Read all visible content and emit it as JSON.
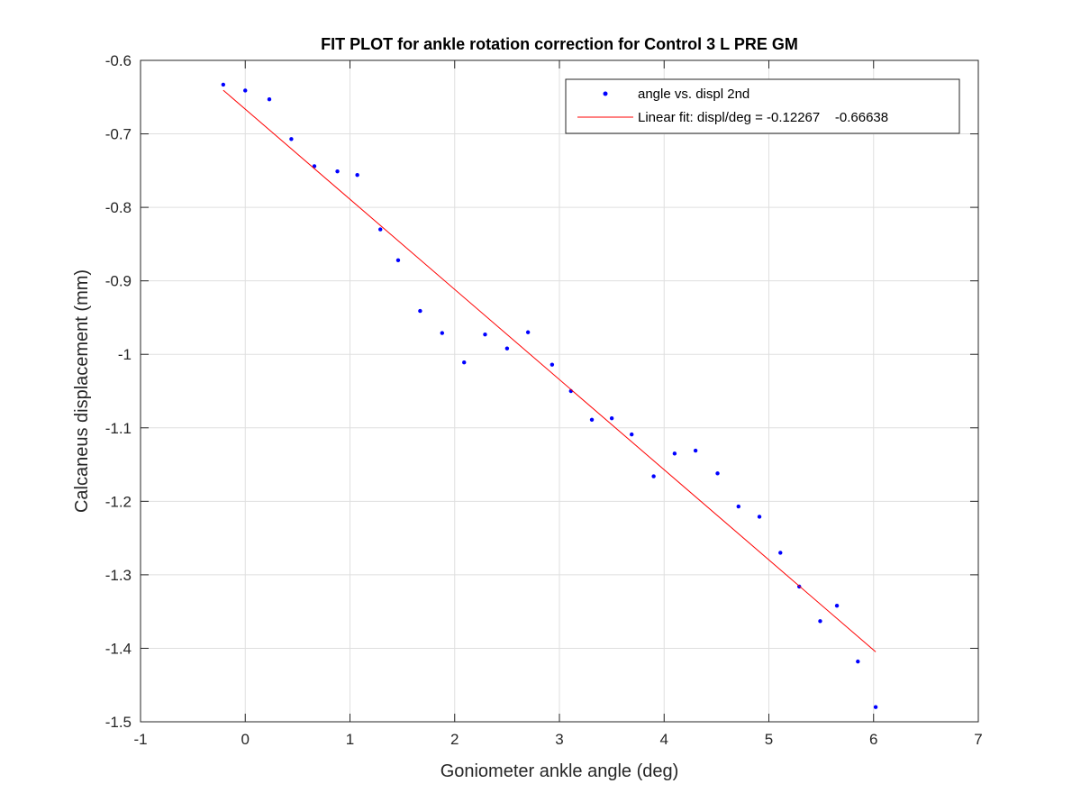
{
  "chart_data": {
    "type": "scatter",
    "title": "FIT PLOT for ankle rotation correction for Control 3 L PRE GM",
    "xlabel": "Goniometer ankle angle (deg)",
    "ylabel": "Calcaneus displacement (mm)",
    "xlim": [
      -1,
      7
    ],
    "ylim": [
      -1.5,
      -0.6
    ],
    "xticks": [
      -1,
      0,
      1,
      2,
      3,
      4,
      5,
      6,
      7
    ],
    "xtick_labels": [
      "-1",
      "0",
      "1",
      "2",
      "3",
      "4",
      "5",
      "6",
      "7"
    ],
    "yticks": [
      -1.5,
      -1.4,
      -1.3,
      -1.2,
      -1.1,
      -1.0,
      -0.9,
      -0.8,
      -0.7,
      -0.6
    ],
    "ytick_labels": [
      "-1.5",
      "-1.4",
      "-1.3",
      "-1.2",
      "-1.1",
      "-1",
      "-0.9",
      "-0.8",
      "-0.7",
      "-0.6"
    ],
    "grid": true,
    "legend_position": "top-right",
    "series": [
      {
        "name": "angle vs. displ 2nd",
        "kind": "scatter",
        "color": "#0000ff",
        "x": [
          -0.21,
          0.0,
          0.23,
          0.44,
          0.66,
          0.88,
          1.07,
          1.29,
          1.46,
          1.67,
          1.88,
          2.09,
          2.29,
          2.5,
          2.7,
          2.93,
          3.11,
          3.31,
          3.5,
          3.69,
          3.9,
          4.1,
          4.3,
          4.51,
          4.71,
          4.91,
          5.11,
          5.29,
          5.49,
          5.65,
          5.85,
          6.02
        ],
        "y": [
          -0.633,
          -0.641,
          -0.653,
          -0.707,
          -0.744,
          -0.751,
          -0.756,
          -0.83,
          -0.872,
          -0.941,
          -0.971,
          -1.011,
          -0.973,
          -0.992,
          -0.97,
          -1.014,
          -1.05,
          -1.089,
          -1.087,
          -1.109,
          -1.166,
          -1.135,
          -1.131,
          -1.162,
          -1.207,
          -1.221,
          -1.27,
          -1.316,
          -1.363,
          -1.342,
          -1.418,
          -1.48
        ]
      },
      {
        "name": "Linear fit: displ/deg = -0.12267    -0.66638",
        "kind": "line",
        "color": "#ff0000",
        "x": [
          -0.21,
          6.02
        ],
        "y": [
          -0.6406,
          -1.4048
        ]
      }
    ]
  }
}
